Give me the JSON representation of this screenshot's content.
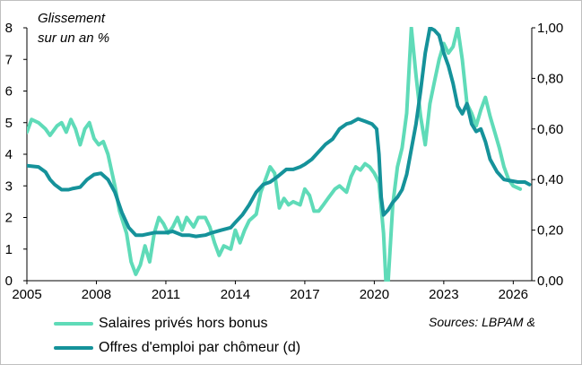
{
  "chart_data": {
    "type": "line",
    "annotation_lines": [
      "Glissement",
      "sur un an %"
    ],
    "source": "Sources: LBPAM &",
    "xlim": [
      2005,
      2026.8
    ],
    "x_ticks": [
      "2005",
      "2008",
      "2011",
      "2014",
      "2017",
      "2020",
      "2023",
      "2026"
    ],
    "y_left": {
      "lim": [
        0,
        8
      ],
      "ticks": [
        "0",
        "1",
        "2",
        "3",
        "4",
        "5",
        "6",
        "7",
        "8"
      ]
    },
    "y_right": {
      "lim": [
        0,
        1
      ],
      "ticks": [
        "0,00",
        "0,20",
        "0,40",
        "0,60",
        "0,80",
        "1,00"
      ]
    },
    "grid": false,
    "legend_position": "bottom",
    "series": [
      {
        "name": "Salaires privés hors bonus",
        "axis": "left",
        "color": "#5fdbb8",
        "points": [
          [
            2005.0,
            4.7
          ],
          [
            2005.2,
            5.1
          ],
          [
            2005.5,
            5.0
          ],
          [
            2005.8,
            4.8
          ],
          [
            2006.0,
            4.6
          ],
          [
            2006.3,
            4.9
          ],
          [
            2006.5,
            5.0
          ],
          [
            2006.7,
            4.7
          ],
          [
            2006.9,
            5.1
          ],
          [
            2007.1,
            4.8
          ],
          [
            2007.3,
            4.3
          ],
          [
            2007.5,
            4.8
          ],
          [
            2007.7,
            5.0
          ],
          [
            2007.9,
            4.5
          ],
          [
            2008.1,
            4.3
          ],
          [
            2008.3,
            4.4
          ],
          [
            2008.5,
            4.0
          ],
          [
            2008.8,
            3.0
          ],
          [
            2009.0,
            2.2
          ],
          [
            2009.3,
            1.5
          ],
          [
            2009.5,
            0.6
          ],
          [
            2009.7,
            0.2
          ],
          [
            2009.9,
            0.5
          ],
          [
            2010.1,
            1.1
          ],
          [
            2010.3,
            0.6
          ],
          [
            2010.5,
            1.5
          ],
          [
            2010.7,
            2.0
          ],
          [
            2010.9,
            1.8
          ],
          [
            2011.1,
            1.5
          ],
          [
            2011.3,
            1.7
          ],
          [
            2011.5,
            2.0
          ],
          [
            2011.7,
            1.6
          ],
          [
            2011.9,
            2.0
          ],
          [
            2012.2,
            1.7
          ],
          [
            2012.4,
            2.0
          ],
          [
            2012.7,
            2.0
          ],
          [
            2012.9,
            1.7
          ],
          [
            2013.1,
            1.2
          ],
          [
            2013.3,
            0.8
          ],
          [
            2013.5,
            1.1
          ],
          [
            2013.8,
            1.0
          ],
          [
            2014.0,
            1.6
          ],
          [
            2014.2,
            1.2
          ],
          [
            2014.4,
            1.6
          ],
          [
            2014.6,
            1.9
          ],
          [
            2014.9,
            2.1
          ],
          [
            2015.1,
            2.8
          ],
          [
            2015.3,
            3.2
          ],
          [
            2015.5,
            3.6
          ],
          [
            2015.7,
            3.4
          ],
          [
            2015.9,
            2.3
          ],
          [
            2016.1,
            2.6
          ],
          [
            2016.3,
            2.4
          ],
          [
            2016.5,
            2.5
          ],
          [
            2016.8,
            2.4
          ],
          [
            2017.0,
            2.9
          ],
          [
            2017.2,
            2.7
          ],
          [
            2017.4,
            2.2
          ],
          [
            2017.6,
            2.2
          ],
          [
            2017.8,
            2.4
          ],
          [
            2018.0,
            2.6
          ],
          [
            2018.3,
            2.9
          ],
          [
            2018.5,
            3.0
          ],
          [
            2018.8,
            2.8
          ],
          [
            2019.0,
            3.3
          ],
          [
            2019.2,
            3.6
          ],
          [
            2019.4,
            3.5
          ],
          [
            2019.6,
            3.7
          ],
          [
            2019.8,
            3.6
          ],
          [
            2020.0,
            3.4
          ],
          [
            2020.2,
            3.1
          ],
          [
            2020.4,
            1.5
          ],
          [
            2020.5,
            0.0
          ],
          [
            2020.6,
            0.0
          ],
          [
            2020.8,
            2.4
          ],
          [
            2021.0,
            3.6
          ],
          [
            2021.2,
            4.2
          ],
          [
            2021.4,
            5.3
          ],
          [
            2021.6,
            8.0
          ],
          [
            2021.8,
            6.5
          ],
          [
            2022.0,
            5.2
          ],
          [
            2022.2,
            4.3
          ],
          [
            2022.4,
            5.6
          ],
          [
            2022.6,
            6.3
          ],
          [
            2022.8,
            7.0
          ],
          [
            2023.0,
            7.5
          ],
          [
            2023.2,
            7.2
          ],
          [
            2023.4,
            7.4
          ],
          [
            2023.6,
            8.0
          ],
          [
            2023.8,
            7.0
          ],
          [
            2024.0,
            5.6
          ],
          [
            2024.2,
            5.3
          ],
          [
            2024.4,
            4.9
          ],
          [
            2024.6,
            5.4
          ],
          [
            2024.8,
            5.8
          ],
          [
            2025.0,
            5.2
          ],
          [
            2025.2,
            4.7
          ],
          [
            2025.4,
            4.2
          ],
          [
            2025.6,
            3.6
          ],
          [
            2025.8,
            3.2
          ],
          [
            2026.0,
            3.0
          ],
          [
            2026.3,
            2.9
          ]
        ]
      },
      {
        "name": "Offres d'emploi par chômeur (d)",
        "axis": "right",
        "color": "#15929a",
        "points": [
          [
            2005.0,
            0.455
          ],
          [
            2005.5,
            0.45
          ],
          [
            2005.8,
            0.43
          ],
          [
            2006.0,
            0.4
          ],
          [
            2006.2,
            0.38
          ],
          [
            2006.5,
            0.36
          ],
          [
            2006.8,
            0.36
          ],
          [
            2007.0,
            0.365
          ],
          [
            2007.3,
            0.37
          ],
          [
            2007.6,
            0.4
          ],
          [
            2007.9,
            0.42
          ],
          [
            2008.2,
            0.425
          ],
          [
            2008.5,
            0.4
          ],
          [
            2008.8,
            0.35
          ],
          [
            2009.1,
            0.27
          ],
          [
            2009.4,
            0.21
          ],
          [
            2009.7,
            0.18
          ],
          [
            2010.0,
            0.18
          ],
          [
            2010.5,
            0.19
          ],
          [
            2011.0,
            0.19
          ],
          [
            2011.3,
            0.195
          ],
          [
            2011.7,
            0.18
          ],
          [
            2012.0,
            0.18
          ],
          [
            2012.3,
            0.175
          ],
          [
            2012.7,
            0.18
          ],
          [
            2013.0,
            0.19
          ],
          [
            2013.4,
            0.2
          ],
          [
            2013.8,
            0.21
          ],
          [
            2014.0,
            0.23
          ],
          [
            2014.3,
            0.26
          ],
          [
            2014.6,
            0.3
          ],
          [
            2014.9,
            0.35
          ],
          [
            2015.2,
            0.38
          ],
          [
            2015.5,
            0.39
          ],
          [
            2015.8,
            0.41
          ],
          [
            2016.2,
            0.44
          ],
          [
            2016.5,
            0.44
          ],
          [
            2016.8,
            0.45
          ],
          [
            2017.0,
            0.46
          ],
          [
            2017.3,
            0.48
          ],
          [
            2017.6,
            0.51
          ],
          [
            2017.9,
            0.54
          ],
          [
            2018.2,
            0.56
          ],
          [
            2018.5,
            0.6
          ],
          [
            2018.8,
            0.62
          ],
          [
            2019.0,
            0.625
          ],
          [
            2019.3,
            0.64
          ],
          [
            2019.6,
            0.63
          ],
          [
            2019.9,
            0.62
          ],
          [
            2020.1,
            0.6
          ],
          [
            2020.2,
            0.5
          ],
          [
            2020.3,
            0.33
          ],
          [
            2020.4,
            0.26
          ],
          [
            2020.6,
            0.28
          ],
          [
            2020.8,
            0.31
          ],
          [
            2021.0,
            0.33
          ],
          [
            2021.2,
            0.36
          ],
          [
            2021.4,
            0.42
          ],
          [
            2021.6,
            0.52
          ],
          [
            2021.8,
            0.62
          ],
          [
            2022.0,
            0.75
          ],
          [
            2022.2,
            0.9
          ],
          [
            2022.4,
            1.0
          ],
          [
            2022.6,
            0.99
          ],
          [
            2022.8,
            0.97
          ],
          [
            2023.0,
            0.9
          ],
          [
            2023.2,
            0.85
          ],
          [
            2023.4,
            0.78
          ],
          [
            2023.6,
            0.69
          ],
          [
            2023.8,
            0.66
          ],
          [
            2024.0,
            0.7
          ],
          [
            2024.2,
            0.62
          ],
          [
            2024.4,
            0.59
          ],
          [
            2024.6,
            0.6
          ],
          [
            2024.8,
            0.55
          ],
          [
            2025.0,
            0.48
          ],
          [
            2025.3,
            0.43
          ],
          [
            2025.6,
            0.4
          ],
          [
            2025.9,
            0.395
          ],
          [
            2026.2,
            0.39
          ],
          [
            2026.5,
            0.39
          ],
          [
            2026.7,
            0.38
          ]
        ]
      }
    ]
  }
}
